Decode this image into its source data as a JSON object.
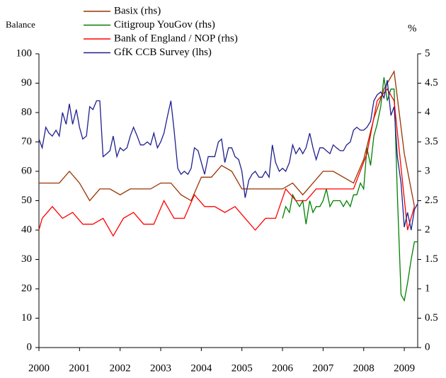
{
  "chart_data": {
    "type": "line",
    "y_label": "Balance",
    "y2_label": "%",
    "xlim": [
      2000,
      2009.33
    ],
    "xticks": [
      2000,
      2001,
      2002,
      2003,
      2004,
      2005,
      2006,
      2007,
      2008,
      2009
    ],
    "ylim": [
      0,
      100
    ],
    "yticks": [
      0,
      10,
      20,
      30,
      40,
      50,
      60,
      70,
      80,
      90,
      100
    ],
    "y2lim": [
      0,
      5
    ],
    "y2ticks": [
      0,
      0.5,
      1,
      1.5,
      2,
      2.5,
      3,
      3.5,
      4,
      4.5,
      5
    ],
    "legend": "top-left",
    "series": [
      {
        "name": "Basix (rhs)",
        "color": "#993300",
        "axis": "y2",
        "x": [
          2000,
          2000.5,
          2000.75,
          2001,
          2001.25,
          2001.5,
          2001.75,
          2002,
          2002.25,
          2002.75,
          2003,
          2003.25,
          2003.5,
          2003.75,
          2004,
          2004.25,
          2004.5,
          2004.75,
          2005,
          2005.5,
          2006,
          2006.25,
          2006.5,
          2006.75,
          2007,
          2007.25,
          2007.75,
          2008,
          2008.25,
          2008.5,
          2008.75,
          2009,
          2009.25
        ],
        "values": [
          2.8,
          2.8,
          3.0,
          2.8,
          2.5,
          2.7,
          2.7,
          2.6,
          2.7,
          2.7,
          2.8,
          2.8,
          2.6,
          2.5,
          2.9,
          2.9,
          3.1,
          3.0,
          2.7,
          2.7,
          2.7,
          2.8,
          2.6,
          2.8,
          3.0,
          3.0,
          2.8,
          3.2,
          3.9,
          4.4,
          4.7,
          3.3,
          2.4
        ]
      },
      {
        "name": "Citigroup YouGov (rhs)",
        "color": "#008000",
        "axis": "y2",
        "x": [
          2006,
          2006.08,
          2006.17,
          2006.25,
          2006.33,
          2006.42,
          2006.5,
          2006.58,
          2006.67,
          2006.75,
          2006.83,
          2006.92,
          2007,
          2007.08,
          2007.17,
          2007.25,
          2007.33,
          2007.42,
          2007.5,
          2007.58,
          2007.67,
          2007.75,
          2007.83,
          2007.92,
          2008,
          2008.08,
          2008.17,
          2008.25,
          2008.33,
          2008.42,
          2008.5,
          2008.58,
          2008.67,
          2008.75,
          2008.83,
          2008.92,
          2009,
          2009.08,
          2009.17,
          2009.25,
          2009.33
        ],
        "values": [
          2.2,
          2.4,
          2.3,
          2.6,
          2.5,
          2.4,
          2.5,
          2.1,
          2.5,
          2.3,
          2.4,
          2.4,
          2.5,
          2.7,
          2.4,
          2.5,
          2.5,
          2.5,
          2.4,
          2.5,
          2.4,
          2.6,
          2.6,
          2.8,
          2.7,
          3.4,
          3.1,
          3.6,
          3.8,
          4.1,
          4.6,
          4.2,
          4.4,
          4.4,
          2.6,
          0.9,
          0.8,
          1.1,
          1.5,
          1.8,
          1.8
        ]
      },
      {
        "name": "Bank of England / NOP (rhs)",
        "color": "#ff0000",
        "axis": "y2",
        "x": [
          2000,
          2000.08,
          2000.33,
          2000.58,
          2000.83,
          2001.08,
          2001.33,
          2001.58,
          2001.83,
          2002.08,
          2002.33,
          2002.58,
          2002.83,
          2003.08,
          2003.33,
          2003.58,
          2003.83,
          2004.08,
          2004.33,
          2004.58,
          2004.83,
          2005.08,
          2005.33,
          2005.58,
          2005.83,
          2006.08,
          2006.33,
          2006.58,
          2006.83,
          2007.08,
          2007.5,
          2007.75,
          2008.08,
          2008.33,
          2008.58,
          2008.75,
          2009.08,
          2009.25
        ],
        "values": [
          2.0,
          2.2,
          2.4,
          2.2,
          2.3,
          2.1,
          2.1,
          2.2,
          1.9,
          2.2,
          2.3,
          2.1,
          2.1,
          2.5,
          2.2,
          2.2,
          2.6,
          2.4,
          2.4,
          2.3,
          2.4,
          2.2,
          2.0,
          2.2,
          2.2,
          2.7,
          2.5,
          2.5,
          2.7,
          2.7,
          2.7,
          2.7,
          3.3,
          4.2,
          4.4,
          4.2,
          2.0,
          2.4
        ]
      },
      {
        "name": "GfK CCB Survey (lhs)",
        "color": "#1f1f8f",
        "axis": "y",
        "x": [
          2000,
          2000.08,
          2000.17,
          2000.25,
          2000.33,
          2000.42,
          2000.5,
          2000.58,
          2000.67,
          2000.75,
          2000.83,
          2000.92,
          2001,
          2001.08,
          2001.17,
          2001.25,
          2001.33,
          2001.42,
          2001.5,
          2001.58,
          2001.67,
          2001.75,
          2001.83,
          2001.92,
          2002,
          2002.08,
          2002.17,
          2002.25,
          2002.33,
          2002.42,
          2002.5,
          2002.58,
          2002.67,
          2002.75,
          2002.83,
          2002.92,
          2003,
          2003.08,
          2003.17,
          2003.25,
          2003.33,
          2003.42,
          2003.5,
          2003.58,
          2003.67,
          2003.75,
          2003.83,
          2003.92,
          2004,
          2004.08,
          2004.17,
          2004.25,
          2004.33,
          2004.42,
          2004.5,
          2004.58,
          2004.67,
          2004.75,
          2004.83,
          2004.92,
          2005,
          2005.08,
          2005.17,
          2005.25,
          2005.33,
          2005.42,
          2005.5,
          2005.58,
          2005.67,
          2005.75,
          2005.83,
          2005.92,
          2006,
          2006.08,
          2006.17,
          2006.25,
          2006.33,
          2006.42,
          2006.5,
          2006.58,
          2006.67,
          2006.75,
          2006.83,
          2006.92,
          2007,
          2007.08,
          2007.17,
          2007.25,
          2007.33,
          2007.42,
          2007.5,
          2007.58,
          2007.67,
          2007.75,
          2007.83,
          2007.92,
          2008,
          2008.08,
          2008.17,
          2008.25,
          2008.33,
          2008.42,
          2008.5,
          2008.58,
          2008.67,
          2008.75,
          2008.83,
          2008.92,
          2009,
          2009.08,
          2009.17,
          2009.25,
          2009.33
        ],
        "values": [
          71,
          68,
          75,
          73,
          72,
          74,
          72,
          80,
          76,
          83,
          76,
          81,
          75,
          71,
          72,
          82,
          81,
          84,
          84,
          65,
          66,
          67,
          72,
          65,
          68,
          67,
          68,
          72,
          75,
          72,
          69,
          69,
          70,
          69,
          73,
          68,
          70,
          73,
          79,
          84,
          74,
          61,
          59,
          60,
          59,
          61,
          68,
          67,
          63,
          59,
          65,
          65,
          65,
          70,
          71,
          63,
          68,
          68,
          65,
          64,
          60,
          51,
          57,
          59,
          60,
          58,
          58,
          60,
          58,
          69,
          63,
          60,
          61,
          60,
          63,
          69,
          66,
          68,
          66,
          68,
          73,
          68,
          64,
          68,
          68,
          67,
          66,
          69,
          68,
          67,
          67,
          69,
          70,
          74,
          75,
          74,
          74,
          75,
          77,
          84,
          86,
          87,
          85,
          91,
          79,
          82,
          65,
          56,
          41,
          46,
          40,
          47,
          49
        ]
      }
    ]
  }
}
